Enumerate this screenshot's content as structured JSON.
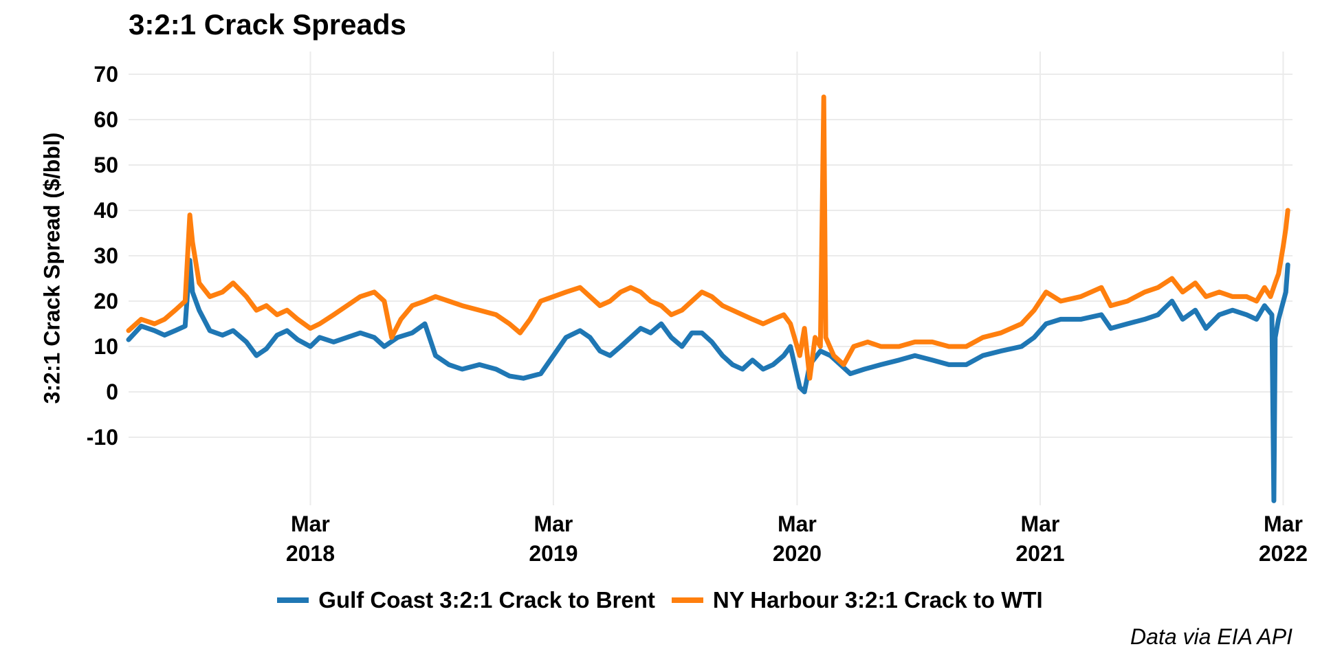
{
  "chart_data": {
    "type": "line",
    "title": "3:2:1 Crack Spreads",
    "ylabel": "3:2:1 Crack Spread ($/bbl)",
    "xlabel": "",
    "caption": "Data via EIA API",
    "ylim": [
      -25,
      75
    ],
    "xlim": [
      "2017-06-01",
      "2022-03-15"
    ],
    "y_ticks": [
      {
        "value": 70,
        "label": "70"
      },
      {
        "value": 60,
        "label": "60"
      },
      {
        "value": 50,
        "label": "50"
      },
      {
        "value": 40,
        "label": "40"
      },
      {
        "value": 30,
        "label": "30"
      },
      {
        "value": 20,
        "label": "20"
      },
      {
        "value": 10,
        "label": "10"
      },
      {
        "value": 0,
        "label": "0"
      },
      {
        "value": -10,
        "label": "-10"
      }
    ],
    "x_ticks": [
      {
        "date": "2018-03-01",
        "line1": "Mar",
        "line2": "2018"
      },
      {
        "date": "2019-03-01",
        "line1": "Mar",
        "line2": "2019"
      },
      {
        "date": "2020-03-01",
        "line1": "Mar",
        "line2": "2020"
      },
      {
        "date": "2021-03-01",
        "line1": "Mar",
        "line2": "2021"
      },
      {
        "date": "2022-03-01",
        "line1": "Mar",
        "line2": "2022"
      }
    ],
    "grid": true,
    "legend_position": "bottom",
    "series": [
      {
        "name": "Gulf Coast 3:2:1 Crack to Brent",
        "color": "#1f77b4",
        "points": [
          [
            "2017-06-01",
            11.5
          ],
          [
            "2017-06-20",
            14.5
          ],
          [
            "2017-07-10",
            13.5
          ],
          [
            "2017-07-25",
            12.5
          ],
          [
            "2017-08-10",
            13.5
          ],
          [
            "2017-08-25",
            14.5
          ],
          [
            "2017-09-01",
            29.0
          ],
          [
            "2017-09-05",
            22.0
          ],
          [
            "2017-09-15",
            18.0
          ],
          [
            "2017-10-01",
            13.5
          ],
          [
            "2017-10-20",
            12.5
          ],
          [
            "2017-11-05",
            13.5
          ],
          [
            "2017-11-25",
            11.0
          ],
          [
            "2017-12-10",
            8.0
          ],
          [
            "2017-12-25",
            9.5
          ],
          [
            "2018-01-10",
            12.5
          ],
          [
            "2018-01-25",
            13.5
          ],
          [
            "2018-02-10",
            11.5
          ],
          [
            "2018-03-01",
            10.0
          ],
          [
            "2018-03-15",
            12.0
          ],
          [
            "2018-04-05",
            11.0
          ],
          [
            "2018-04-25",
            12.0
          ],
          [
            "2018-05-15",
            13.0
          ],
          [
            "2018-06-05",
            12.0
          ],
          [
            "2018-06-20",
            10.0
          ],
          [
            "2018-07-10",
            12.0
          ],
          [
            "2018-08-01",
            13.0
          ],
          [
            "2018-08-20",
            15.0
          ],
          [
            "2018-09-05",
            8.0
          ],
          [
            "2018-09-25",
            6.0
          ],
          [
            "2018-10-15",
            5.0
          ],
          [
            "2018-11-10",
            6.0
          ],
          [
            "2018-12-05",
            5.0
          ],
          [
            "2018-12-25",
            3.5
          ],
          [
            "2019-01-15",
            3.0
          ],
          [
            "2019-02-10",
            4.0
          ],
          [
            "2019-03-01",
            8.0
          ],
          [
            "2019-03-20",
            12.0
          ],
          [
            "2019-04-10",
            13.5
          ],
          [
            "2019-04-25",
            12.0
          ],
          [
            "2019-05-10",
            9.0
          ],
          [
            "2019-05-25",
            8.0
          ],
          [
            "2019-06-10",
            10.0
          ],
          [
            "2019-06-25",
            12.0
          ],
          [
            "2019-07-10",
            14.0
          ],
          [
            "2019-07-25",
            13.0
          ],
          [
            "2019-08-10",
            15.0
          ],
          [
            "2019-08-25",
            12.0
          ],
          [
            "2019-09-10",
            10.0
          ],
          [
            "2019-09-25",
            13.0
          ],
          [
            "2019-10-10",
            13.0
          ],
          [
            "2019-10-25",
            11.0
          ],
          [
            "2019-11-10",
            8.0
          ],
          [
            "2019-11-25",
            6.0
          ],
          [
            "2019-12-10",
            5.0
          ],
          [
            "2019-12-25",
            7.0
          ],
          [
            "2020-01-10",
            5.0
          ],
          [
            "2020-01-25",
            6.0
          ],
          [
            "2020-02-10",
            8.0
          ],
          [
            "2020-02-20",
            10.0
          ],
          [
            "2020-03-05",
            1.0
          ],
          [
            "2020-03-12",
            0.0
          ],
          [
            "2020-03-20",
            6.0
          ],
          [
            "2020-04-05",
            9.0
          ],
          [
            "2020-04-20",
            8.0
          ],
          [
            "2020-05-05",
            6.0
          ],
          [
            "2020-05-20",
            4.0
          ],
          [
            "2020-06-10",
            5.0
          ],
          [
            "2020-07-05",
            6.0
          ],
          [
            "2020-08-01",
            7.0
          ],
          [
            "2020-08-25",
            8.0
          ],
          [
            "2020-09-20",
            7.0
          ],
          [
            "2020-10-15",
            6.0
          ],
          [
            "2020-11-10",
            6.0
          ],
          [
            "2020-12-05",
            8.0
          ],
          [
            "2021-01-01",
            9.0
          ],
          [
            "2021-02-01",
            10.0
          ],
          [
            "2021-02-20",
            12.0
          ],
          [
            "2021-03-10",
            15.0
          ],
          [
            "2021-04-01",
            16.0
          ],
          [
            "2021-05-01",
            16.0
          ],
          [
            "2021-06-01",
            17.0
          ],
          [
            "2021-06-15",
            14.0
          ],
          [
            "2021-07-10",
            15.0
          ],
          [
            "2021-08-05",
            16.0
          ],
          [
            "2021-08-25",
            17.0
          ],
          [
            "2021-09-15",
            20.0
          ],
          [
            "2021-10-01",
            16.0
          ],
          [
            "2021-10-20",
            18.0
          ],
          [
            "2021-11-05",
            14.0
          ],
          [
            "2021-11-25",
            17.0
          ],
          [
            "2021-12-15",
            18.0
          ],
          [
            "2022-01-05",
            17.0
          ],
          [
            "2022-01-20",
            16.0
          ],
          [
            "2022-02-01",
            19.0
          ],
          [
            "2022-02-12",
            17.0
          ],
          [
            "2022-02-15",
            -24.0
          ],
          [
            "2022-02-17",
            12.0
          ],
          [
            "2022-02-22",
            16.0
          ],
          [
            "2022-03-05",
            22.0
          ],
          [
            "2022-03-08",
            28.0
          ]
        ]
      },
      {
        "name": "NY Harbour 3:2:1 Crack to WTI",
        "color": "#ff7f0e",
        "points": [
          [
            "2017-06-01",
            13.5
          ],
          [
            "2017-06-20",
            16.0
          ],
          [
            "2017-07-10",
            15.0
          ],
          [
            "2017-07-25",
            16.0
          ],
          [
            "2017-08-10",
            18.0
          ],
          [
            "2017-08-25",
            20.0
          ],
          [
            "2017-09-01",
            39.0
          ],
          [
            "2017-09-05",
            33.0
          ],
          [
            "2017-09-15",
            24.0
          ],
          [
            "2017-10-01",
            21.0
          ],
          [
            "2017-10-20",
            22.0
          ],
          [
            "2017-11-05",
            24.0
          ],
          [
            "2017-11-25",
            21.0
          ],
          [
            "2017-12-10",
            18.0
          ],
          [
            "2017-12-25",
            19.0
          ],
          [
            "2018-01-10",
            17.0
          ],
          [
            "2018-01-25",
            18.0
          ],
          [
            "2018-02-10",
            16.0
          ],
          [
            "2018-03-01",
            14.0
          ],
          [
            "2018-03-15",
            15.0
          ],
          [
            "2018-04-05",
            17.0
          ],
          [
            "2018-04-25",
            19.0
          ],
          [
            "2018-05-15",
            21.0
          ],
          [
            "2018-06-05",
            22.0
          ],
          [
            "2018-06-20",
            20.0
          ],
          [
            "2018-07-01",
            12.0
          ],
          [
            "2018-07-15",
            16.0
          ],
          [
            "2018-08-01",
            19.0
          ],
          [
            "2018-08-20",
            20.0
          ],
          [
            "2018-09-05",
            21.0
          ],
          [
            "2018-09-25",
            20.0
          ],
          [
            "2018-10-15",
            19.0
          ],
          [
            "2018-11-10",
            18.0
          ],
          [
            "2018-12-05",
            17.0
          ],
          [
            "2018-12-25",
            15.0
          ],
          [
            "2019-01-10",
            13.0
          ],
          [
            "2019-01-25",
            16.0
          ],
          [
            "2019-02-10",
            20.0
          ],
          [
            "2019-03-01",
            21.0
          ],
          [
            "2019-03-20",
            22.0
          ],
          [
            "2019-04-10",
            23.0
          ],
          [
            "2019-04-25",
            21.0
          ],
          [
            "2019-05-10",
            19.0
          ],
          [
            "2019-05-25",
            20.0
          ],
          [
            "2019-06-10",
            22.0
          ],
          [
            "2019-06-25",
            23.0
          ],
          [
            "2019-07-10",
            22.0
          ],
          [
            "2019-07-25",
            20.0
          ],
          [
            "2019-08-10",
            19.0
          ],
          [
            "2019-08-25",
            17.0
          ],
          [
            "2019-09-10",
            18.0
          ],
          [
            "2019-09-25",
            20.0
          ],
          [
            "2019-10-10",
            22.0
          ],
          [
            "2019-10-25",
            21.0
          ],
          [
            "2019-11-10",
            19.0
          ],
          [
            "2019-11-25",
            18.0
          ],
          [
            "2019-12-10",
            17.0
          ],
          [
            "2019-12-25",
            16.0
          ],
          [
            "2020-01-10",
            15.0
          ],
          [
            "2020-01-25",
            16.0
          ],
          [
            "2020-02-10",
            17.0
          ],
          [
            "2020-02-20",
            15.0
          ],
          [
            "2020-03-05",
            8.0
          ],
          [
            "2020-03-12",
            14.0
          ],
          [
            "2020-03-20",
            3.0
          ],
          [
            "2020-03-28",
            12.0
          ],
          [
            "2020-04-05",
            10.0
          ],
          [
            "2020-04-10",
            65.0
          ],
          [
            "2020-04-13",
            12.0
          ],
          [
            "2020-04-25",
            8.0
          ],
          [
            "2020-05-10",
            6.0
          ],
          [
            "2020-05-25",
            10.0
          ],
          [
            "2020-06-15",
            11.0
          ],
          [
            "2020-07-05",
            10.0
          ],
          [
            "2020-08-01",
            10.0
          ],
          [
            "2020-08-25",
            11.0
          ],
          [
            "2020-09-20",
            11.0
          ],
          [
            "2020-10-15",
            10.0
          ],
          [
            "2020-11-10",
            10.0
          ],
          [
            "2020-12-05",
            12.0
          ],
          [
            "2021-01-01",
            13.0
          ],
          [
            "2021-02-01",
            15.0
          ],
          [
            "2021-02-20",
            18.0
          ],
          [
            "2021-03-10",
            22.0
          ],
          [
            "2021-04-01",
            20.0
          ],
          [
            "2021-05-01",
            21.0
          ],
          [
            "2021-06-01",
            23.0
          ],
          [
            "2021-06-15",
            19.0
          ],
          [
            "2021-07-10",
            20.0
          ],
          [
            "2021-08-05",
            22.0
          ],
          [
            "2021-08-25",
            23.0
          ],
          [
            "2021-09-15",
            25.0
          ],
          [
            "2021-10-01",
            22.0
          ],
          [
            "2021-10-20",
            24.0
          ],
          [
            "2021-11-05",
            21.0
          ],
          [
            "2021-11-25",
            22.0
          ],
          [
            "2021-12-15",
            21.0
          ],
          [
            "2022-01-05",
            21.0
          ],
          [
            "2022-01-20",
            20.0
          ],
          [
            "2022-02-01",
            23.0
          ],
          [
            "2022-02-10",
            21.0
          ],
          [
            "2022-02-17",
            24.0
          ],
          [
            "2022-02-22",
            26.0
          ],
          [
            "2022-03-01",
            32.0
          ],
          [
            "2022-03-05",
            36.0
          ],
          [
            "2022-03-08",
            40.0
          ]
        ]
      }
    ]
  }
}
